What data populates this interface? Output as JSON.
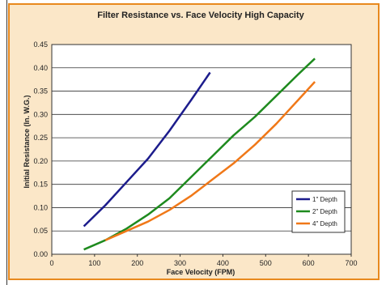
{
  "chart_data": {
    "type": "line",
    "title": "Filter Resistance vs. Face Velocity High Capacity",
    "xlabel": "Face Velocity (FPM)",
    "ylabel": "Initial Resistance (In. W.G.)",
    "xlim": [
      0,
      700
    ],
    "ylim": [
      0,
      0.45
    ],
    "xticks": [
      "0",
      "100",
      "200",
      "300",
      "400",
      "500",
      "600",
      "700"
    ],
    "yticks": [
      "0.00",
      "0.05",
      "0.10",
      "0.15",
      "0.20",
      "0.25",
      "0.30",
      "0.35",
      "0.40",
      "0.45"
    ],
    "grid": true,
    "legend_position": "bottom-right",
    "series": [
      {
        "name": "1\" Depth",
        "color": "#1c1c8c",
        "x": [
          75,
          125,
          175,
          225,
          275,
          325,
          370
        ],
        "y": [
          0.06,
          0.105,
          0.155,
          0.205,
          0.265,
          0.33,
          0.39
        ]
      },
      {
        "name": "2\" Depth",
        "color": "#1e8a1e",
        "x": [
          75,
          125,
          175,
          225,
          275,
          325,
          375,
          425,
          475,
          525,
          575,
          615
        ],
        "y": [
          0.01,
          0.03,
          0.055,
          0.085,
          0.12,
          0.165,
          0.21,
          0.255,
          0.295,
          0.34,
          0.385,
          0.42
        ]
      },
      {
        "name": "4\" Depth",
        "color": "#f07818",
        "x": [
          125,
          175,
          225,
          275,
          325,
          375,
          425,
          475,
          525,
          575,
          615
        ],
        "y": [
          0.03,
          0.05,
          0.07,
          0.095,
          0.125,
          0.16,
          0.195,
          0.235,
          0.28,
          0.33,
          0.37
        ]
      }
    ]
  }
}
